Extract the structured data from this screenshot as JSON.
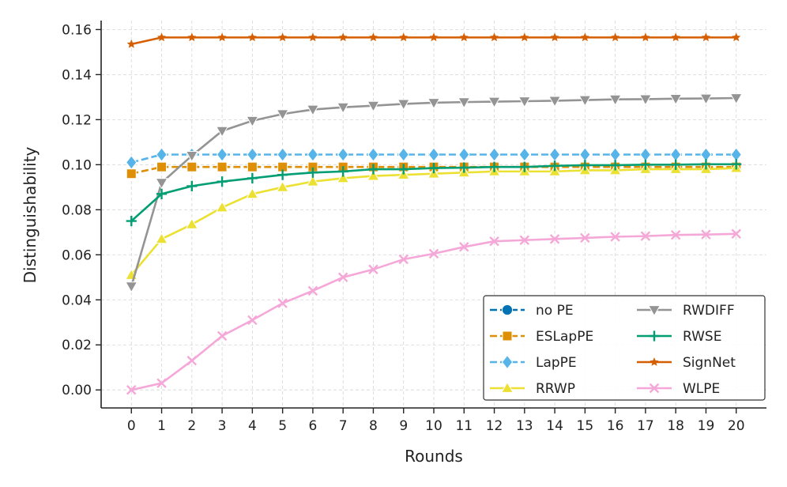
{
  "chart_data": {
    "type": "line",
    "title": "",
    "xlabel": "Rounds",
    "ylabel": "Distinguishability",
    "x": [
      0,
      1,
      2,
      3,
      4,
      5,
      6,
      7,
      8,
      9,
      10,
      11,
      12,
      13,
      14,
      15,
      16,
      17,
      18,
      19,
      20
    ],
    "xlim": [
      -1,
      21
    ],
    "ylim": [
      -0.008,
      0.164
    ],
    "yticks": [
      0.0,
      0.02,
      0.04,
      0.06,
      0.08,
      0.1,
      0.12,
      0.14,
      0.16
    ],
    "ytick_labels": [
      "0.00",
      "0.02",
      "0.04",
      "0.06",
      "0.08",
      "0.10",
      "0.12",
      "0.14",
      "0.16"
    ],
    "xtick_labels": [
      "0",
      "1",
      "2",
      "3",
      "4",
      "5",
      "6",
      "7",
      "8",
      "9",
      "10",
      "11",
      "12",
      "13",
      "14",
      "15",
      "16",
      "17",
      "18",
      "19",
      "20"
    ],
    "grid": true,
    "legend_position": "bottom-right",
    "series": [
      {
        "name": "no PE",
        "color": "#0173b2",
        "marker": "circle",
        "values": [
          null,
          null,
          null,
          null,
          null,
          null,
          null,
          null,
          null,
          null,
          null,
          null,
          null,
          null,
          null,
          null,
          null,
          null,
          null,
          null,
          null
        ]
      },
      {
        "name": "ESLapPE",
        "color": "#de8f05",
        "marker": "square",
        "values": [
          0.096,
          0.099,
          0.099,
          0.099,
          0.099,
          0.099,
          0.099,
          0.099,
          0.099,
          0.099,
          0.099,
          0.099,
          0.099,
          0.099,
          0.099,
          0.099,
          0.099,
          0.099,
          0.099,
          0.099,
          0.099
        ]
      },
      {
        "name": "LapPE",
        "color": "#56b4e9",
        "marker": "diamond",
        "values": [
          0.101,
          0.1045,
          0.1045,
          0.1045,
          0.1045,
          0.1045,
          0.1045,
          0.1045,
          0.1045,
          0.1045,
          0.1045,
          0.1045,
          0.1045,
          0.1045,
          0.1045,
          0.1045,
          0.1045,
          0.1045,
          0.1045,
          0.1045,
          0.1045
        ]
      },
      {
        "name": "RRWP",
        "color": "#ece133",
        "marker": "triangle-up",
        "values": [
          0.051,
          0.067,
          0.0735,
          0.081,
          0.087,
          0.09,
          0.0925,
          0.094,
          0.095,
          0.0955,
          0.096,
          0.0965,
          0.097,
          0.097,
          0.097,
          0.0975,
          0.0975,
          0.098,
          0.098,
          0.098,
          0.0985
        ]
      },
      {
        "name": "RWDIFF",
        "color": "#949494",
        "marker": "triangle-down",
        "values": [
          0.046,
          0.092,
          0.104,
          0.115,
          0.1195,
          0.1225,
          0.1245,
          0.1255,
          0.1262,
          0.127,
          0.1275,
          0.1278,
          0.128,
          0.1282,
          0.1284,
          0.1287,
          0.129,
          0.1291,
          0.1293,
          0.1294,
          0.1296
        ]
      },
      {
        "name": "RWSE",
        "color": "#029e73",
        "marker": "plus",
        "values": [
          0.075,
          0.087,
          0.0905,
          0.0925,
          0.094,
          0.0955,
          0.0965,
          0.097,
          0.098,
          0.098,
          0.0985,
          0.0987,
          0.099,
          0.099,
          0.0995,
          0.0998,
          0.0998,
          0.1,
          0.1,
          0.1002,
          0.1002
        ]
      },
      {
        "name": "SignNet",
        "color": "#d55e00",
        "marker": "star",
        "values": [
          0.1535,
          0.1565,
          0.1565,
          0.1565,
          0.1565,
          0.1565,
          0.1565,
          0.1565,
          0.1565,
          0.1565,
          0.1565,
          0.1565,
          0.1565,
          0.1565,
          0.1565,
          0.1565,
          0.1565,
          0.1565,
          0.1565,
          0.1565,
          0.1565
        ]
      },
      {
        "name": "WLPE",
        "color": "#f5a8d8",
        "marker": "x",
        "values": [
          0.0,
          0.003,
          0.013,
          0.024,
          0.031,
          0.0385,
          0.044,
          0.05,
          0.0535,
          0.058,
          0.0605,
          0.0635,
          0.066,
          0.0665,
          0.067,
          0.0675,
          0.068,
          0.0683,
          0.0688,
          0.069,
          0.0693
        ]
      }
    ]
  }
}
